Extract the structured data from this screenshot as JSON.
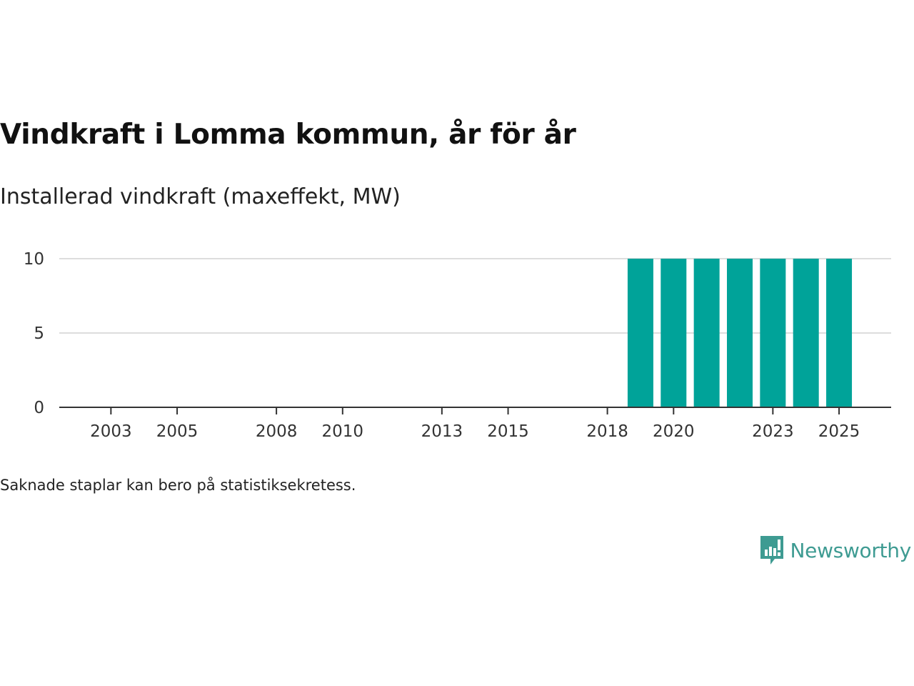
{
  "chart_data": {
    "type": "bar",
    "title": "Vindkraft i Lomma kommun, år för år",
    "subtitle": "Installerad vindkraft (maxeffekt, MW)",
    "xlabel": "",
    "ylabel": "",
    "categories": [
      "2019",
      "2020",
      "2021",
      "2022",
      "2023",
      "2024",
      "2025"
    ],
    "values": [
      10,
      10,
      10,
      10,
      10,
      10,
      10
    ],
    "x_range": [
      2002,
      2026
    ],
    "x_ticks": [
      "2003",
      "2005",
      "2008",
      "2010",
      "2013",
      "2015",
      "2018",
      "2020",
      "2023",
      "2025"
    ],
    "ylim": [
      0,
      10
    ],
    "y_ticks": [
      "0",
      "5",
      "10"
    ],
    "grid": true,
    "bar_color": "#00a399"
  },
  "footnote": "Saknade staplar kan bero på statistiksekretess.",
  "brand": {
    "name": "Newsworthy",
    "icon": "newsworthy-logo-icon",
    "color": "#3e9b92"
  }
}
